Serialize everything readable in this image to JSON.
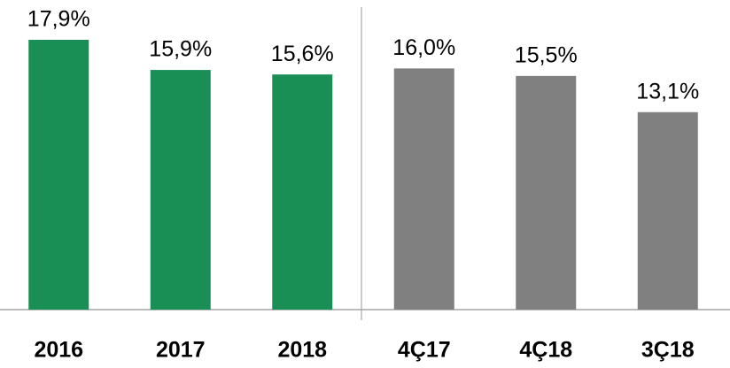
{
  "chart_data": {
    "type": "bar",
    "categories": [
      "2016",
      "2017",
      "2018",
      "4Ç17",
      "4Ç18",
      "3Ç18"
    ],
    "values": [
      17.9,
      15.9,
      15.6,
      16.0,
      15.5,
      13.1
    ],
    "value_labels": [
      "17,9%",
      "15,9%",
      "15,6%",
      "16,0%",
      "15,5%",
      "13,1%"
    ],
    "colors": [
      "#1a8f55",
      "#1a8f55",
      "#1a8f55",
      "#808080",
      "#808080",
      "#808080"
    ]
  }
}
